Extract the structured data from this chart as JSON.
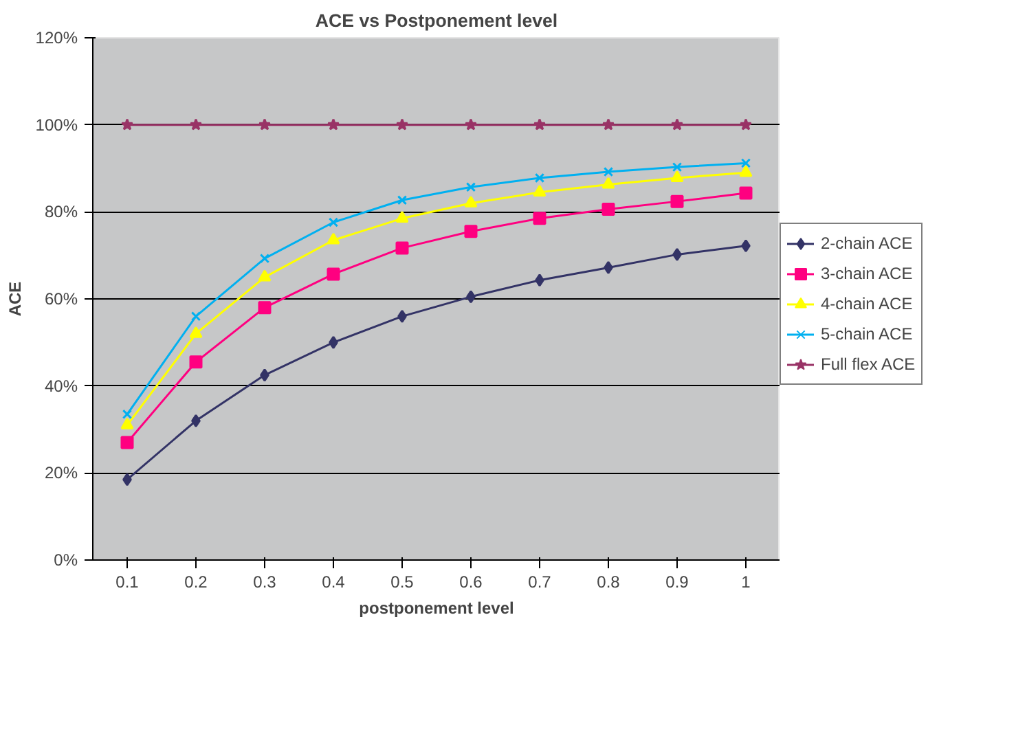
{
  "chart_data": {
    "type": "line",
    "title": "ACE vs Postponement level",
    "xlabel": "postponement level",
    "ylabel": "ACE",
    "categories": [
      "0.1",
      "0.2",
      "0.3",
      "0.4",
      "0.5",
      "0.6",
      "0.7",
      "0.8",
      "0.9",
      "1"
    ],
    "ylim": [
      0,
      120
    ],
    "yticks": [
      {
        "value": 0,
        "label": "0%"
      },
      {
        "value": 20,
        "label": "20%"
      },
      {
        "value": 40,
        "label": "40%"
      },
      {
        "value": 60,
        "label": "60%"
      },
      {
        "value": 80,
        "label": "80%"
      },
      {
        "value": 100,
        "label": "100%"
      },
      {
        "value": 120,
        "label": "120%"
      }
    ],
    "grid": "y",
    "legend": "right",
    "series": [
      {
        "name": "2-chain ACE",
        "color": "#333366",
        "marker": "diamond",
        "values": [
          18.5,
          32,
          42.5,
          50,
          56,
          60.5,
          64.3,
          67.2,
          70.2,
          72.2
        ]
      },
      {
        "name": "3-chain ACE",
        "color": "#ff0080",
        "marker": "square",
        "values": [
          27,
          45.5,
          58,
          65.7,
          71.7,
          75.5,
          78.5,
          80.6,
          82.4,
          84.3
        ]
      },
      {
        "name": "4-chain ACE",
        "color": "#ffff00",
        "marker": "triangle",
        "values": [
          31,
          52,
          65,
          73.5,
          78.5,
          82,
          84.5,
          86.3,
          87.8,
          89
        ]
      },
      {
        "name": "5-chain ACE",
        "color": "#00b0f0",
        "marker": "cross",
        "values": [
          33.5,
          56,
          69.3,
          77.6,
          82.7,
          85.7,
          87.8,
          89.2,
          90.3,
          91.2
        ]
      },
      {
        "name": "Full flex ACE",
        "color": "#993366",
        "marker": "star",
        "values": [
          100,
          100,
          100,
          100,
          100,
          100,
          100,
          100,
          100,
          100
        ]
      }
    ]
  }
}
